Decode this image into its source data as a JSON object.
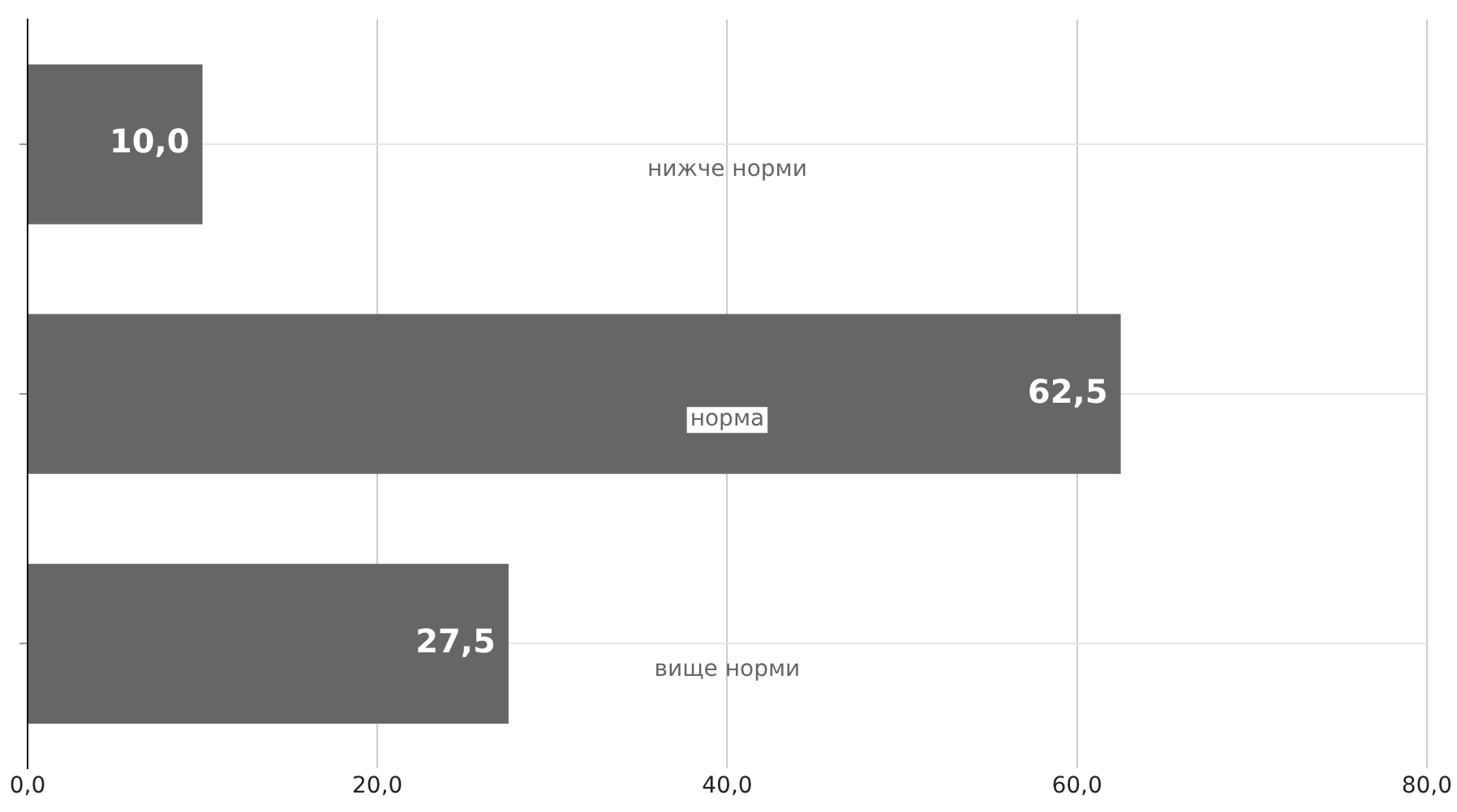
{
  "chart_data": {
    "type": "bar",
    "orientation": "horizontal",
    "categories": [
      "нижче норми",
      "норма",
      "вище норми"
    ],
    "values": [
      10.0,
      62.5,
      27.5
    ],
    "value_labels": [
      "10,0",
      "62,5",
      "27,5"
    ],
    "color": "#666666",
    "xlim": [
      0,
      80
    ],
    "xticks": [
      {
        "value": 0,
        "label": "0,0"
      },
      {
        "value": 20,
        "label": "20,0"
      },
      {
        "value": 40,
        "label": "40,0"
      },
      {
        "value": 60,
        "label": "60,0"
      },
      {
        "value": 80,
        "label": "80,0"
      }
    ],
    "grid": true,
    "legend": false
  }
}
